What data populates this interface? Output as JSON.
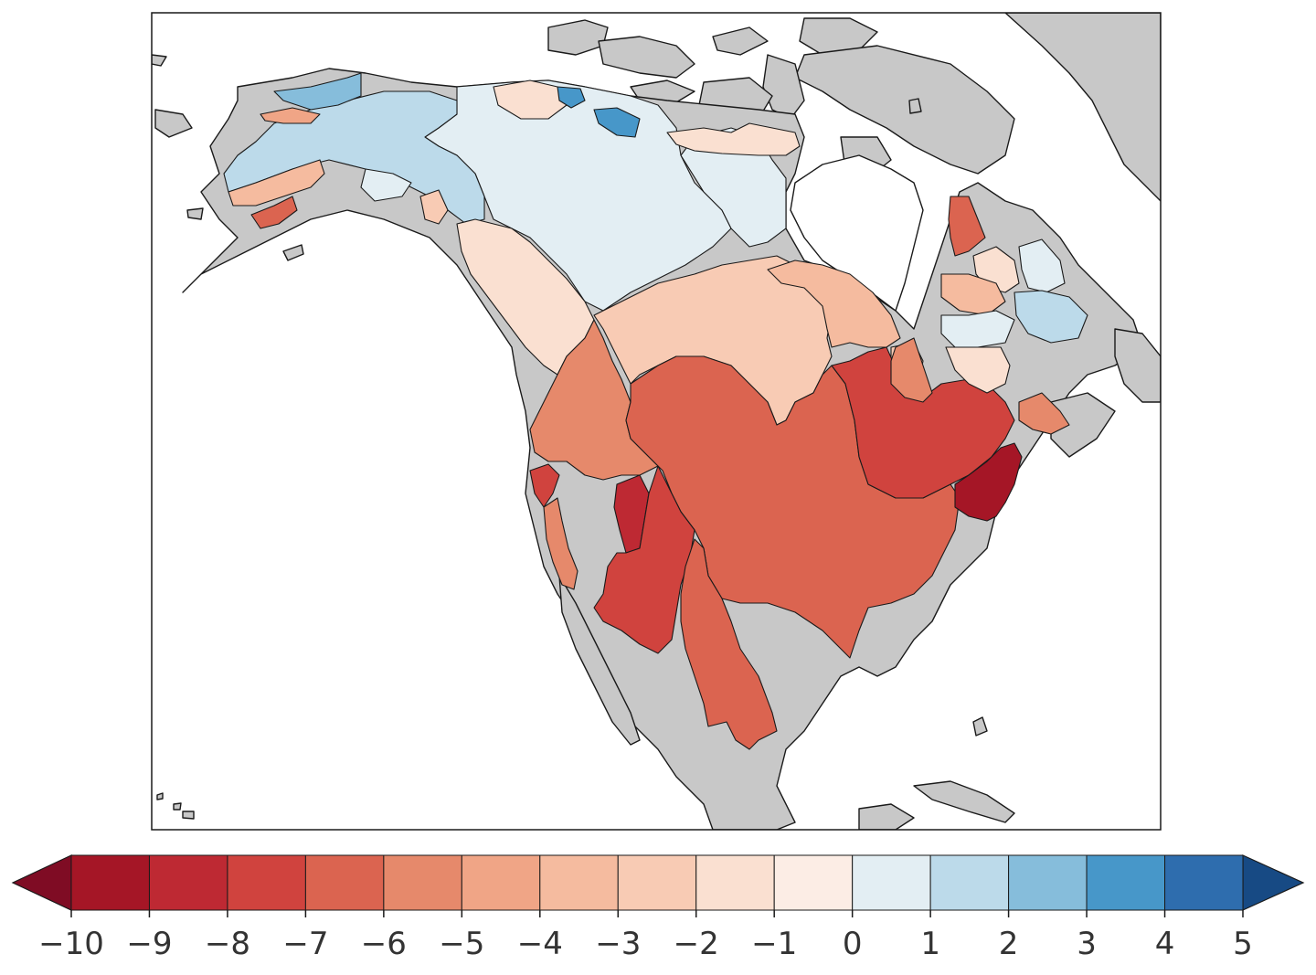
{
  "map": {
    "region": "North America",
    "land_color": "#c8c8c8",
    "ocean_color": "#ffffff",
    "basin_outline_color": "#1a1a1a",
    "basins": [
      {
        "name": "arctic-northwest",
        "value": 0.4
      },
      {
        "name": "hudson-bay-west",
        "value": 0.4
      },
      {
        "name": "yukon",
        "value": 1.3
      },
      {
        "name": "alaska-north-slope",
        "value": 2.1
      },
      {
        "name": "alaska-northwest",
        "value": -4.6
      },
      {
        "name": "alaska-south",
        "value": -3.4
      },
      {
        "name": "alaska-southwest",
        "value": -6.2
      },
      {
        "name": "alaska-interior-small",
        "value": 0.3
      },
      {
        "name": "bc-coast-north",
        "value": -2.2
      },
      {
        "name": "arctic-coast-small",
        "value": -1.4
      },
      {
        "name": "arctic-east-blue",
        "value": 3.5
      },
      {
        "name": "arctic-east-deep",
        "value": 3.8
      },
      {
        "name": "hudson-north",
        "value": -1.5
      },
      {
        "name": "columbia-north",
        "value": -1.8
      },
      {
        "name": "saskatchewan-nelson",
        "value": -2.6
      },
      {
        "name": "hudson-south",
        "value": -3.1
      },
      {
        "name": "james-bay-east",
        "value": -2.2
      },
      {
        "name": "columbia",
        "value": -5.2
      },
      {
        "name": "missouri-mississippi",
        "value": -6.3
      },
      {
        "name": "great-lakes-st-lawrence",
        "value": -7.2
      },
      {
        "name": "ohio-east",
        "value": -5.6
      },
      {
        "name": "atlantic-maritime",
        "value": -5.8
      },
      {
        "name": "atlantic-northeast",
        "value": -9.8
      },
      {
        "name": "great-basin",
        "value": -8.6
      },
      {
        "name": "colorado",
        "value": -7.1
      },
      {
        "name": "rio-grande",
        "value": -6.4
      },
      {
        "name": "california-north",
        "value": -7.6
      },
      {
        "name": "california-central",
        "value": -5.4
      },
      {
        "name": "labrador-north",
        "value": -6.8
      },
      {
        "name": "labrador-central",
        "value": -1.6
      },
      {
        "name": "labrador-east",
        "value": 0.6
      },
      {
        "name": "quebec-north",
        "value": -3.2
      },
      {
        "name": "quebec-central",
        "value": 0.5
      },
      {
        "name": "quebec-south",
        "value": -1.5
      },
      {
        "name": "quebec-blue",
        "value": 1.7
      }
    ]
  },
  "colorbar": {
    "min": -10,
    "max": 5,
    "step": 1,
    "extend": "both",
    "colors": [
      "#a51626",
      "#be2933",
      "#d0433e",
      "#db6450",
      "#e6896b",
      "#f0a586",
      "#f5bb9f",
      "#f8cbb4",
      "#fae0d1",
      "#fcede5",
      "#e3eef3",
      "#bcdaea",
      "#86bddb",
      "#4797c9",
      "#2e6dae"
    ],
    "under_color": "#7f0c24",
    "over_color": "#174a84",
    "tick_labels": [
      "−10",
      "−9",
      "−8",
      "−7",
      "−6",
      "−5",
      "−4",
      "−3",
      "−2",
      "−1",
      "0",
      "1",
      "2",
      "3",
      "4",
      "5"
    ]
  }
}
